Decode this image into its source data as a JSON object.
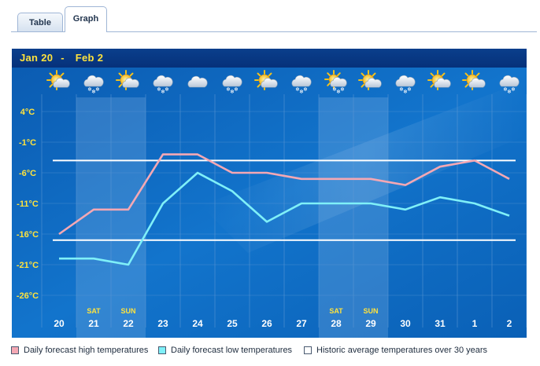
{
  "tabs": [
    {
      "label": "Table",
      "active": false
    },
    {
      "label": "Graph",
      "active": true
    }
  ],
  "header": {
    "range_start": "Jan 20",
    "range_sep": "-",
    "range_end": "Feb 2"
  },
  "colors": {
    "high": "#f4a8b4",
    "low": "#7ff0f8",
    "historic": "#ffffff",
    "axis_label": "#ffe33d",
    "day_label": "#ffffff"
  },
  "chart_data": {
    "type": "line",
    "title": "",
    "xlabel": "",
    "ylabel": "",
    "ylim": [
      -30,
      6
    ],
    "yticks": [
      4,
      -1,
      -6,
      -11,
      -16,
      -21,
      -26
    ],
    "ytick_labels": [
      "4°C",
      "-1°C",
      "-6°C",
      "-11°C",
      "-16°C",
      "-21°C",
      "-26°C"
    ],
    "categories": [
      "20",
      "21",
      "22",
      "23",
      "24",
      "25",
      "26",
      "27",
      "28",
      "29",
      "30",
      "31",
      "1",
      "2"
    ],
    "weekend_labels": [
      "",
      "SAT",
      "SUN",
      "",
      "",
      "",
      "",
      "",
      "SAT",
      "SUN",
      "",
      "",
      "",
      ""
    ],
    "weather_icons": [
      "sun-cloud-icon",
      "cloud-snow-icon",
      "sun-cloud-icon",
      "cloud-snow-icon",
      "cloud-icon",
      "cloud-snow-icon",
      "sun-cloud-icon",
      "cloud-snow-icon",
      "sun-cloud-snow-icon",
      "sun-cloud-icon",
      "cloud-snow-icon",
      "sun-cloud-icon",
      "sun-cloud-icon",
      "cloud-snow-icon"
    ],
    "series": [
      {
        "name": "Daily forecast high temperatures",
        "values": [
          -16,
          -12,
          -12,
          -3,
          -3,
          -6,
          -6,
          -7,
          -7,
          -7,
          -8,
          -5,
          -4,
          -7
        ]
      },
      {
        "name": "Daily forecast low temperatures",
        "values": [
          -20,
          -20,
          -21,
          -11,
          -6,
          -9,
          -14,
          -11,
          -11,
          -11,
          -12,
          -10,
          -11,
          -13
        ]
      }
    ],
    "historic_lines": [
      -4,
      -17
    ],
    "legend": [
      {
        "label": "Daily forecast high temperatures",
        "color": "#f4a8b4"
      },
      {
        "label": "Daily forecast low temperatures",
        "color": "#7ff0f8"
      },
      {
        "label": "Historic average temperatures over 30 years",
        "color": "#ffffff"
      }
    ],
    "legend_position": "bottom",
    "grid": true
  }
}
